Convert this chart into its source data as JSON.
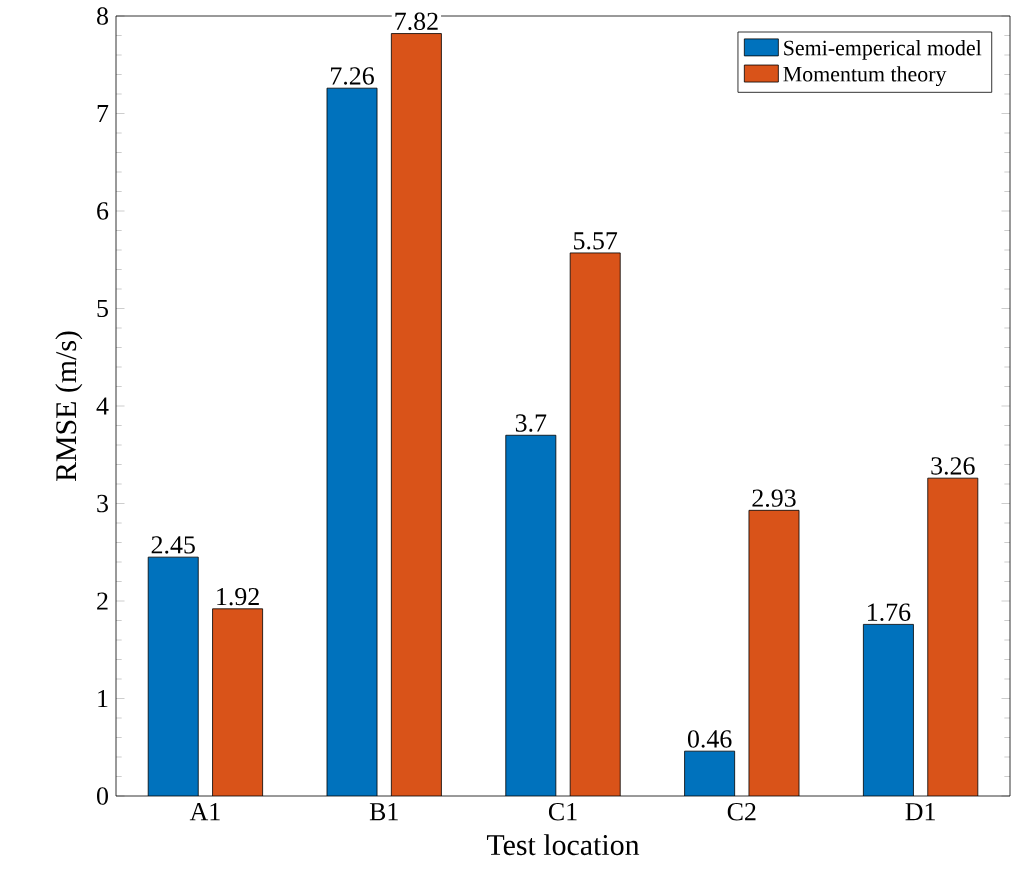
{
  "chart_data": {
    "type": "bar",
    "xlabel": "Test location",
    "ylabel": "RMSE (m/s)",
    "categories": [
      "A1",
      "B1",
      "C1",
      "C2",
      "D1"
    ],
    "series": [
      {
        "name": "Semi-emperical model",
        "color": "#0072bd",
        "values": [
          2.45,
          7.26,
          3.7,
          0.46,
          1.76
        ]
      },
      {
        "name": "Momentum theory",
        "color": "#d95319",
        "values": [
          1.92,
          7.82,
          5.57,
          2.93,
          3.26
        ]
      }
    ],
    "ylim": [
      0,
      8
    ],
    "yticks": [
      0,
      1,
      2,
      3,
      4,
      5,
      6,
      7,
      8
    ],
    "legend": "top right",
    "data_labels": true
  }
}
